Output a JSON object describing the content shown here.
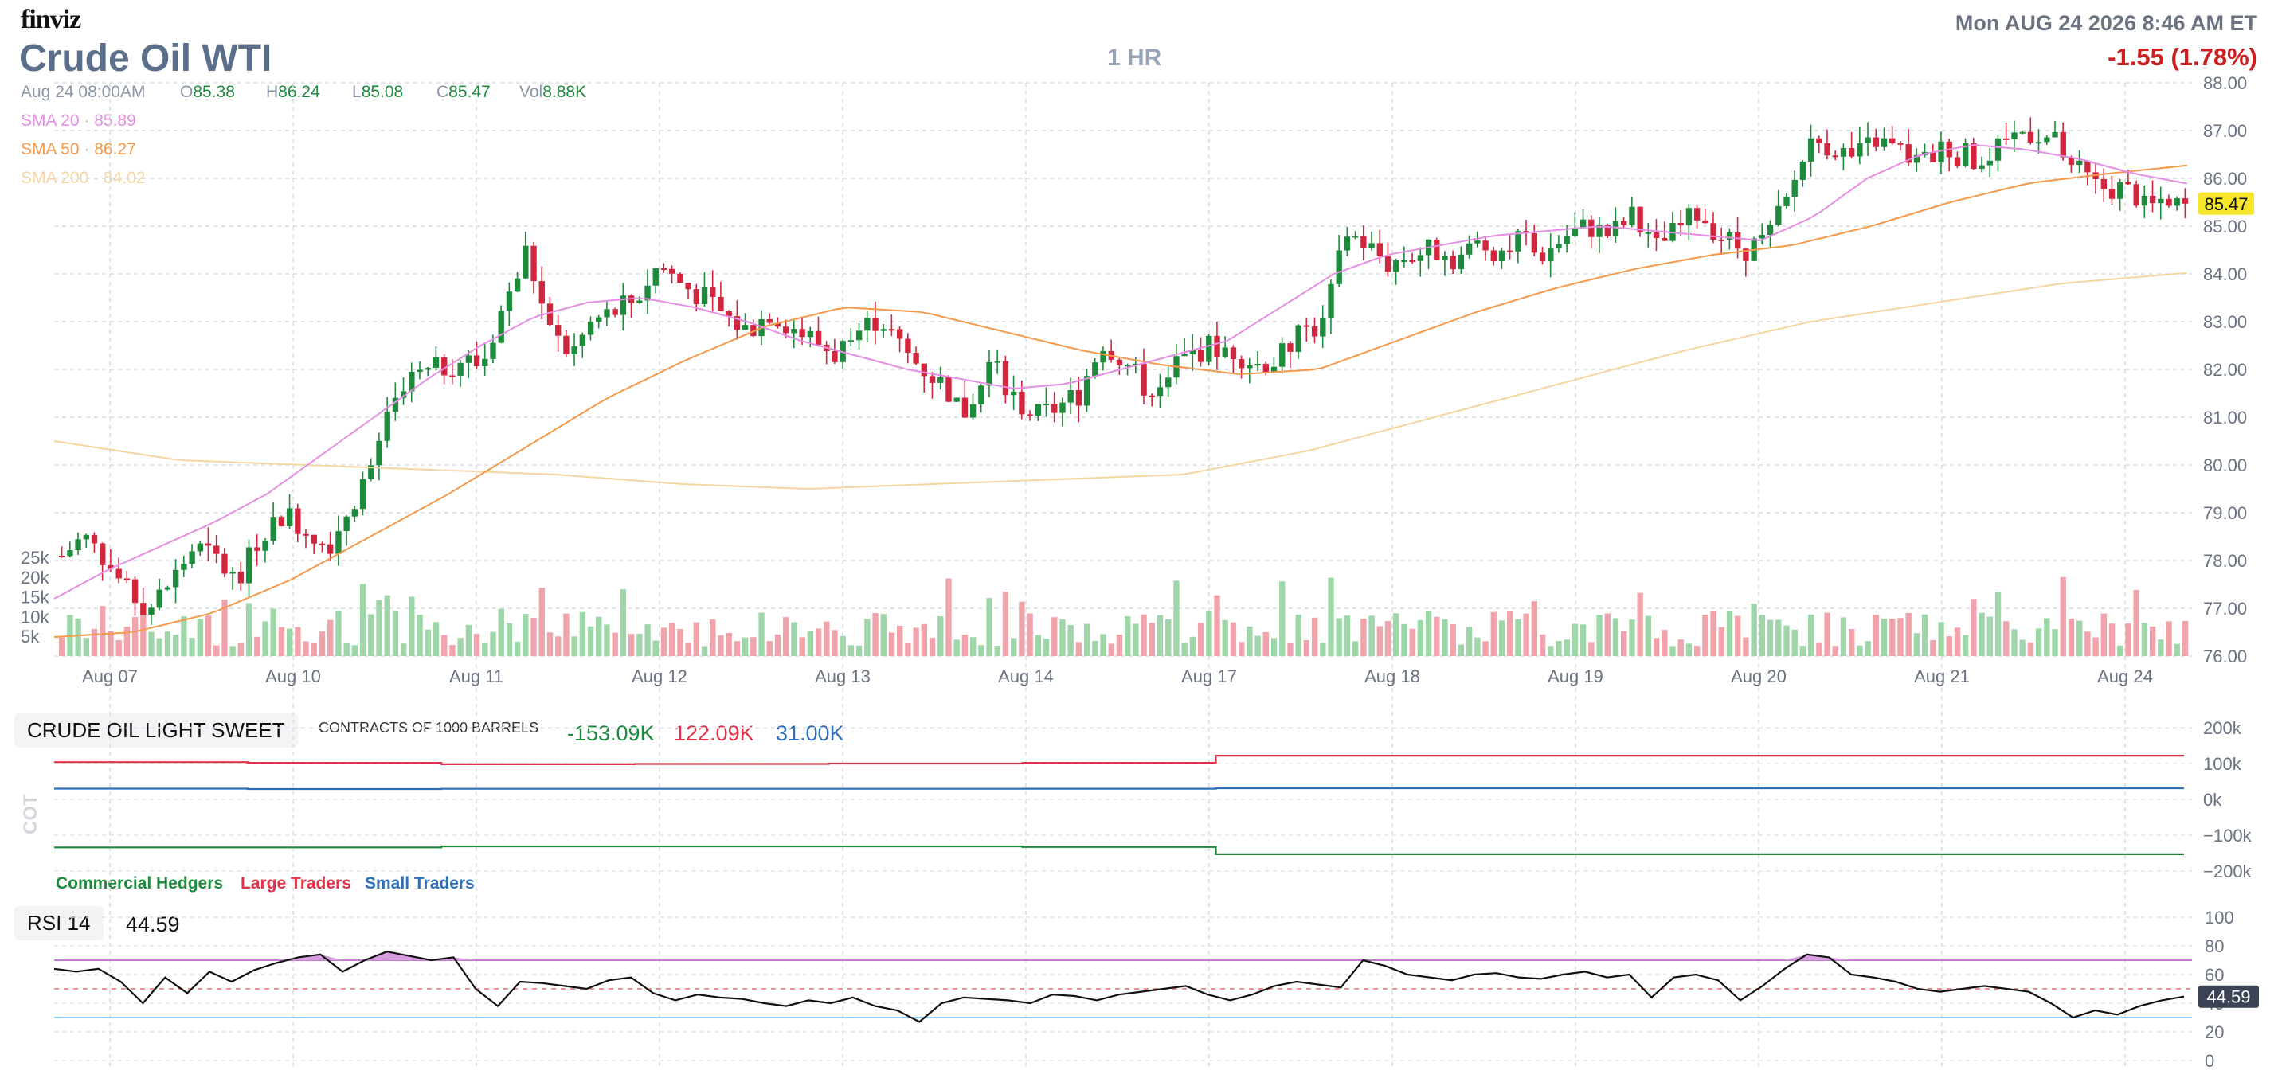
{
  "header": {
    "logo": "finviz",
    "title": "Crude Oil WTI",
    "timeframe": "1 HR",
    "datetime": "Mon AUG 24 2026 8:46 AM ET",
    "change": "-1.55 (1.78%)"
  },
  "ohlc_bar": {
    "date": "Aug 24 08:00AM",
    "open_label": "O",
    "open": "85.38",
    "high_label": "H",
    "high": "86.24",
    "low_label": "L",
    "low": "85.08",
    "close_label": "C",
    "close": "85.47",
    "vol_label": "Vol",
    "vol": "8.88K"
  },
  "sma_legend": [
    {
      "label": "SMA 20",
      "value": "85.89",
      "color": "#e58ee3"
    },
    {
      "label": "SMA 50",
      "value": "86.27",
      "color": "#f5994a"
    },
    {
      "label": "SMA 200",
      "value": "84.02",
      "color": "#f6d6a0"
    }
  ],
  "colors": {
    "up": "#1e8a3c",
    "down": "#d1263d",
    "vol_up": "#9fd6a9",
    "vol_down": "#f0a3aa",
    "price_tag": "#f5e62a",
    "rsi": "#111111",
    "rsi_band": "#c77ad4",
    "rsi_low": "#8ec9ef"
  },
  "cot": {
    "label": "CRUDE OIL LIGHT SWEET",
    "units": "CONTRACTS OF 1000 BARRELS",
    "axis_label": "COT",
    "values": [
      "-153.09K",
      "122.09K",
      "31.00K"
    ],
    "value_colors": [
      "#1e8a3c",
      "#e0334a",
      "#2f6fba"
    ],
    "legend": [
      "Commercial Hedgers",
      "Large Traders",
      "Small Traders"
    ]
  },
  "rsi": {
    "label": "RSI 14",
    "value": "44.59"
  },
  "chart_data": [
    {
      "type": "candlestick",
      "title": "Crude Oil WTI",
      "timeframe": "1 HR",
      "x_ticks": [
        "Aug 07",
        "Aug 10",
        "Aug 11",
        "Aug 12",
        "Aug 13",
        "Aug 14",
        "Aug 17",
        "Aug 18",
        "Aug 19",
        "Aug 20",
        "Aug 21",
        "Aug 24"
      ],
      "ylim": [
        76,
        88
      ],
      "y_ticks": [
        "88.00",
        "87.00",
        "86.00",
        "85.00",
        "84.00",
        "83.00",
        "82.00",
        "81.00",
        "80.00",
        "79.00",
        "78.00",
        "77.00",
        "76.00"
      ],
      "last_price": "85.47",
      "close_path": [
        78.1,
        78.5,
        78.0,
        77.3,
        77.0,
        77.6,
        78.3,
        78.0,
        77.5,
        78.6,
        79.0,
        78.7,
        78.3,
        79.1,
        80.0,
        81.2,
        81.8,
        82.0,
        82.2,
        82.1,
        83.4,
        84.5,
        82.8,
        82.3,
        83.0,
        83.2,
        83.5,
        84.2,
        83.8,
        83.5,
        83.1,
        82.8,
        83.2,
        82.9,
        82.6,
        82.3,
        82.8,
        83.1,
        82.4,
        82.0,
        81.6,
        81.0,
        82.2,
        81.4,
        81.0,
        81.2,
        81.5,
        82.6,
        82.2,
        81.6,
        81.9,
        82.3,
        82.5,
        82.4,
        82.1,
        82.2,
        82.8,
        82.9,
        84.9,
        84.6,
        84.2,
        84.4,
        84.5,
        84.3,
        84.6,
        84.5,
        84.7,
        84.4,
        84.8,
        85.0,
        84.8,
        85.2,
        84.5,
        84.9,
        85.3,
        84.8,
        84.5,
        84.7,
        85.5,
        86.8,
        86.7,
        86.4,
        86.8,
        86.6,
        86.3,
        86.6,
        86.5,
        86.2,
        86.9,
        87.0,
        86.8,
        86.2,
        85.8,
        85.8,
        85.6,
        85.3,
        85.47
      ],
      "sma20_path": [
        77.2,
        77.8,
        78.3,
        78.8,
        79.4,
        80.2,
        81.0,
        81.8,
        82.5,
        83.1,
        83.4,
        83.5,
        83.3,
        83.0,
        82.6,
        82.3,
        82.0,
        81.8,
        81.6,
        81.7,
        82.0,
        82.3,
        82.6,
        83.3,
        84.0,
        84.4,
        84.6,
        84.8,
        84.9,
        85.0,
        84.9,
        84.8,
        84.7,
        85.2,
        86.0,
        86.5,
        86.7,
        86.6,
        86.4,
        86.1,
        85.89
      ],
      "sma50_path": [
        76.4,
        76.5,
        76.9,
        77.6,
        78.5,
        79.4,
        80.4,
        81.4,
        82.2,
        82.9,
        83.3,
        83.2,
        82.8,
        82.4,
        82.1,
        81.9,
        82.0,
        82.6,
        83.2,
        83.7,
        84.1,
        84.4,
        84.6,
        85.0,
        85.5,
        85.9,
        86.1,
        86.27
      ],
      "sma200_path": [
        80.5,
        80.1,
        80.0,
        79.9,
        79.8,
        79.6,
        79.5,
        79.6,
        79.7,
        79.8,
        80.3,
        81.0,
        81.7,
        82.4,
        83.0,
        83.4,
        83.8,
        84.02
      ],
      "volume_ylim": [
        0,
        25000
      ],
      "volume_ticks": [
        "25k",
        "20k",
        "15k",
        "10k",
        "5k"
      ],
      "volume_last": 8880
    },
    {
      "type": "line",
      "title": "CRUDE OIL LIGHT SWEET",
      "ylim": [
        -200000,
        200000
      ],
      "y_ticks": [
        "200k",
        "100k",
        "0k",
        "−100k",
        "−200k"
      ],
      "series": [
        {
          "name": "Commercial Hedgers",
          "values": [
            -134000,
            -134000,
            -131000,
            -131000,
            -131000,
            -133000,
            -153090,
            -153090,
            -153090,
            -153090,
            -153090
          ]
        },
        {
          "name": "Large Traders",
          "values": [
            104000,
            102000,
            98000,
            99000,
            100000,
            102000,
            122090,
            122090,
            122090,
            122090,
            122090
          ]
        },
        {
          "name": "Small Traders",
          "values": [
            30000,
            29000,
            29500,
            29500,
            29500,
            29800,
            31000,
            31000,
            31000,
            31000,
            31000
          ]
        }
      ]
    },
    {
      "type": "line",
      "title": "RSI 14",
      "ylim": [
        0,
        100
      ],
      "y_ticks": [
        "100",
        "80",
        "60",
        "40",
        "20",
        "0"
      ],
      "bands": [
        70,
        50,
        30
      ],
      "last_value": "44.59",
      "series": [
        {
          "name": "RSI 14",
          "values": [
            64,
            62,
            64,
            55,
            40,
            58,
            47,
            62,
            55,
            63,
            68,
            72,
            74,
            62,
            70,
            76,
            73,
            70,
            72,
            50,
            38,
            55,
            54,
            52,
            50,
            56,
            58,
            47,
            42,
            46,
            44,
            43,
            40,
            38,
            42,
            40,
            44,
            38,
            35,
            27,
            40,
            44,
            43,
            42,
            40,
            46,
            45,
            42,
            46,
            48,
            50,
            52,
            46,
            42,
            46,
            52,
            55,
            53,
            51,
            70,
            66,
            60,
            58,
            56,
            60,
            61,
            58,
            57,
            60,
            62,
            58,
            60,
            44,
            58,
            60,
            56,
            42,
            52,
            64,
            74,
            72,
            60,
            58,
            55,
            50,
            48,
            50,
            52,
            50,
            48,
            40,
            30,
            35,
            32,
            38,
            42,
            44.59
          ]
        }
      ]
    }
  ]
}
